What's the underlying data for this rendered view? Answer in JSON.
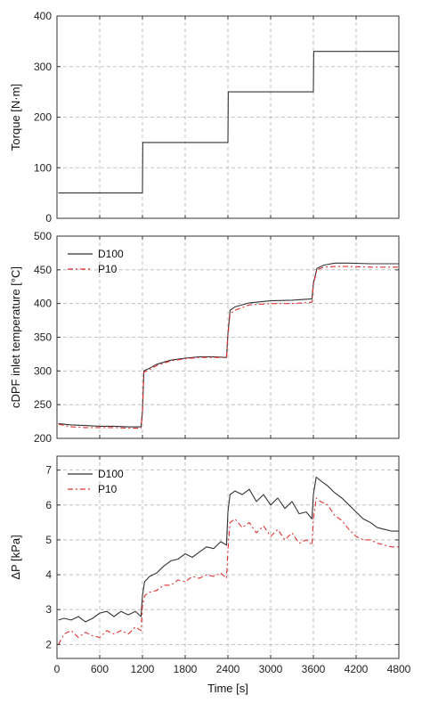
{
  "chart_data": [
    {
      "type": "line",
      "ylabel": "Torque [N·m]",
      "xlim": [
        0,
        4800
      ],
      "ylim": [
        0,
        400
      ],
      "yticks": [
        0,
        100,
        200,
        300,
        400
      ],
      "xticks": [
        0,
        600,
        1200,
        1800,
        2400,
        3000,
        3600,
        4200,
        4800
      ],
      "grid": true,
      "series": [
        {
          "color": "#333333",
          "dash": "solid",
          "x": [
            20,
            1200,
            1205,
            2400,
            2405,
            3600,
            3605,
            4800
          ],
          "y": [
            50,
            50,
            150,
            150,
            250,
            250,
            330,
            330
          ]
        }
      ]
    },
    {
      "type": "line",
      "ylabel": "cDPF inlet temperature [°C]",
      "xlim": [
        0,
        4800
      ],
      "ylim": [
        200,
        500
      ],
      "yticks": [
        200,
        250,
        300,
        350,
        400,
        450,
        500
      ],
      "xticks": [
        0,
        600,
        1200,
        1800,
        2400,
        3000,
        3600,
        4200,
        4800
      ],
      "grid": true,
      "legend": "top-left",
      "series": [
        {
          "name": "D100",
          "color": "#333333",
          "dash": "solid",
          "x": [
            20,
            200,
            400,
            600,
            800,
            1000,
            1180,
            1200,
            1220,
            1300,
            1400,
            1600,
            1800,
            2000,
            2200,
            2380,
            2400,
            2430,
            2500,
            2700,
            3000,
            3300,
            3580,
            3600,
            3650,
            3750,
            3900,
            4100,
            4400,
            4800
          ],
          "y": [
            222,
            220,
            219,
            218,
            218,
            217,
            217,
            240,
            300,
            304,
            310,
            316,
            319,
            321,
            321,
            320,
            355,
            390,
            395,
            401,
            404,
            405,
            407,
            430,
            452,
            457,
            460,
            460,
            459,
            459
          ]
        },
        {
          "name": "P10",
          "color": "#e03030",
          "dash": "6 3 2 3",
          "x": [
            20,
            200,
            400,
            600,
            800,
            1000,
            1180,
            1200,
            1220,
            1300,
            1400,
            1600,
            1800,
            2000,
            2200,
            2380,
            2400,
            2430,
            2500,
            2700,
            3000,
            3300,
            3580,
            3600,
            3650,
            3750,
            3900,
            4100,
            4400,
            4800
          ],
          "y": [
            221,
            217,
            216,
            216,
            216,
            215,
            215,
            238,
            298,
            302,
            308,
            315,
            318,
            320,
            320,
            320,
            352,
            385,
            390,
            398,
            400,
            400,
            402,
            428,
            450,
            454,
            455,
            455,
            454,
            454
          ]
        }
      ]
    },
    {
      "type": "line",
      "ylabel": "ΔP [kPa]",
      "xlabel": "Time [s]",
      "xlim": [
        0,
        4800
      ],
      "ylim": [
        1.6,
        7.4
      ],
      "yticks": [
        2,
        3,
        4,
        5,
        6,
        7
      ],
      "xticks": [
        0,
        600,
        1200,
        1800,
        2400,
        3000,
        3600,
        4200,
        4800
      ],
      "grid": true,
      "legend": "top-left",
      "series": [
        {
          "name": "D100",
          "color": "#333333",
          "dash": "solid",
          "x": [
            20,
            100,
            200,
            300,
            400,
            500,
            600,
            700,
            800,
            900,
            1000,
            1100,
            1180,
            1200,
            1230,
            1300,
            1400,
            1500,
            1600,
            1700,
            1800,
            1900,
            2000,
            2100,
            2200,
            2300,
            2380,
            2400,
            2430,
            2500,
            2600,
            2700,
            2800,
            2900,
            3000,
            3100,
            3200,
            3300,
            3400,
            3500,
            3580,
            3600,
            3640,
            3700,
            3800,
            3900,
            4000,
            4100,
            4200,
            4300,
            4400,
            4500,
            4600,
            4700,
            4800
          ],
          "y": [
            2.7,
            2.75,
            2.7,
            2.8,
            2.65,
            2.75,
            2.9,
            2.95,
            2.8,
            2.95,
            2.85,
            2.95,
            2.8,
            3.4,
            3.8,
            3.95,
            4.05,
            4.25,
            4.4,
            4.45,
            4.6,
            4.5,
            4.65,
            4.8,
            4.75,
            4.95,
            4.85,
            5.8,
            6.3,
            6.4,
            6.3,
            6.45,
            6.1,
            6.3,
            6.0,
            6.2,
            5.9,
            6.1,
            5.75,
            5.8,
            5.6,
            6.3,
            6.8,
            6.7,
            6.55,
            6.35,
            6.2,
            6.0,
            5.8,
            5.6,
            5.5,
            5.35,
            5.3,
            5.25,
            5.25
          ]
        },
        {
          "name": "P10",
          "color": "#e03030",
          "dash": "6 3 2 3",
          "x": [
            20,
            100,
            200,
            300,
            400,
            500,
            600,
            700,
            800,
            900,
            1000,
            1100,
            1180,
            1200,
            1230,
            1300,
            1400,
            1500,
            1600,
            1700,
            1800,
            1900,
            2000,
            2100,
            2200,
            2300,
            2380,
            2400,
            2430,
            2500,
            2600,
            2700,
            2800,
            2900,
            3000,
            3100,
            3200,
            3300,
            3400,
            3500,
            3580,
            3600,
            3640,
            3700,
            3800,
            3900,
            4000,
            4100,
            4200,
            4300,
            4400,
            4500,
            4600,
            4700,
            4800
          ],
          "y": [
            2.0,
            2.3,
            2.4,
            2.2,
            2.35,
            2.25,
            2.2,
            2.4,
            2.3,
            2.4,
            2.3,
            2.5,
            2.4,
            3.1,
            3.4,
            3.5,
            3.55,
            3.7,
            3.7,
            3.85,
            3.8,
            3.95,
            3.9,
            4.0,
            3.95,
            4.05,
            3.9,
            4.7,
            5.5,
            5.6,
            5.35,
            5.5,
            5.2,
            5.4,
            5.1,
            5.3,
            5.0,
            5.2,
            4.9,
            5.0,
            4.85,
            5.6,
            6.2,
            6.1,
            6.0,
            5.7,
            5.55,
            5.3,
            5.1,
            5.0,
            5.0,
            4.9,
            4.85,
            4.8,
            4.8
          ]
        }
      ]
    }
  ]
}
